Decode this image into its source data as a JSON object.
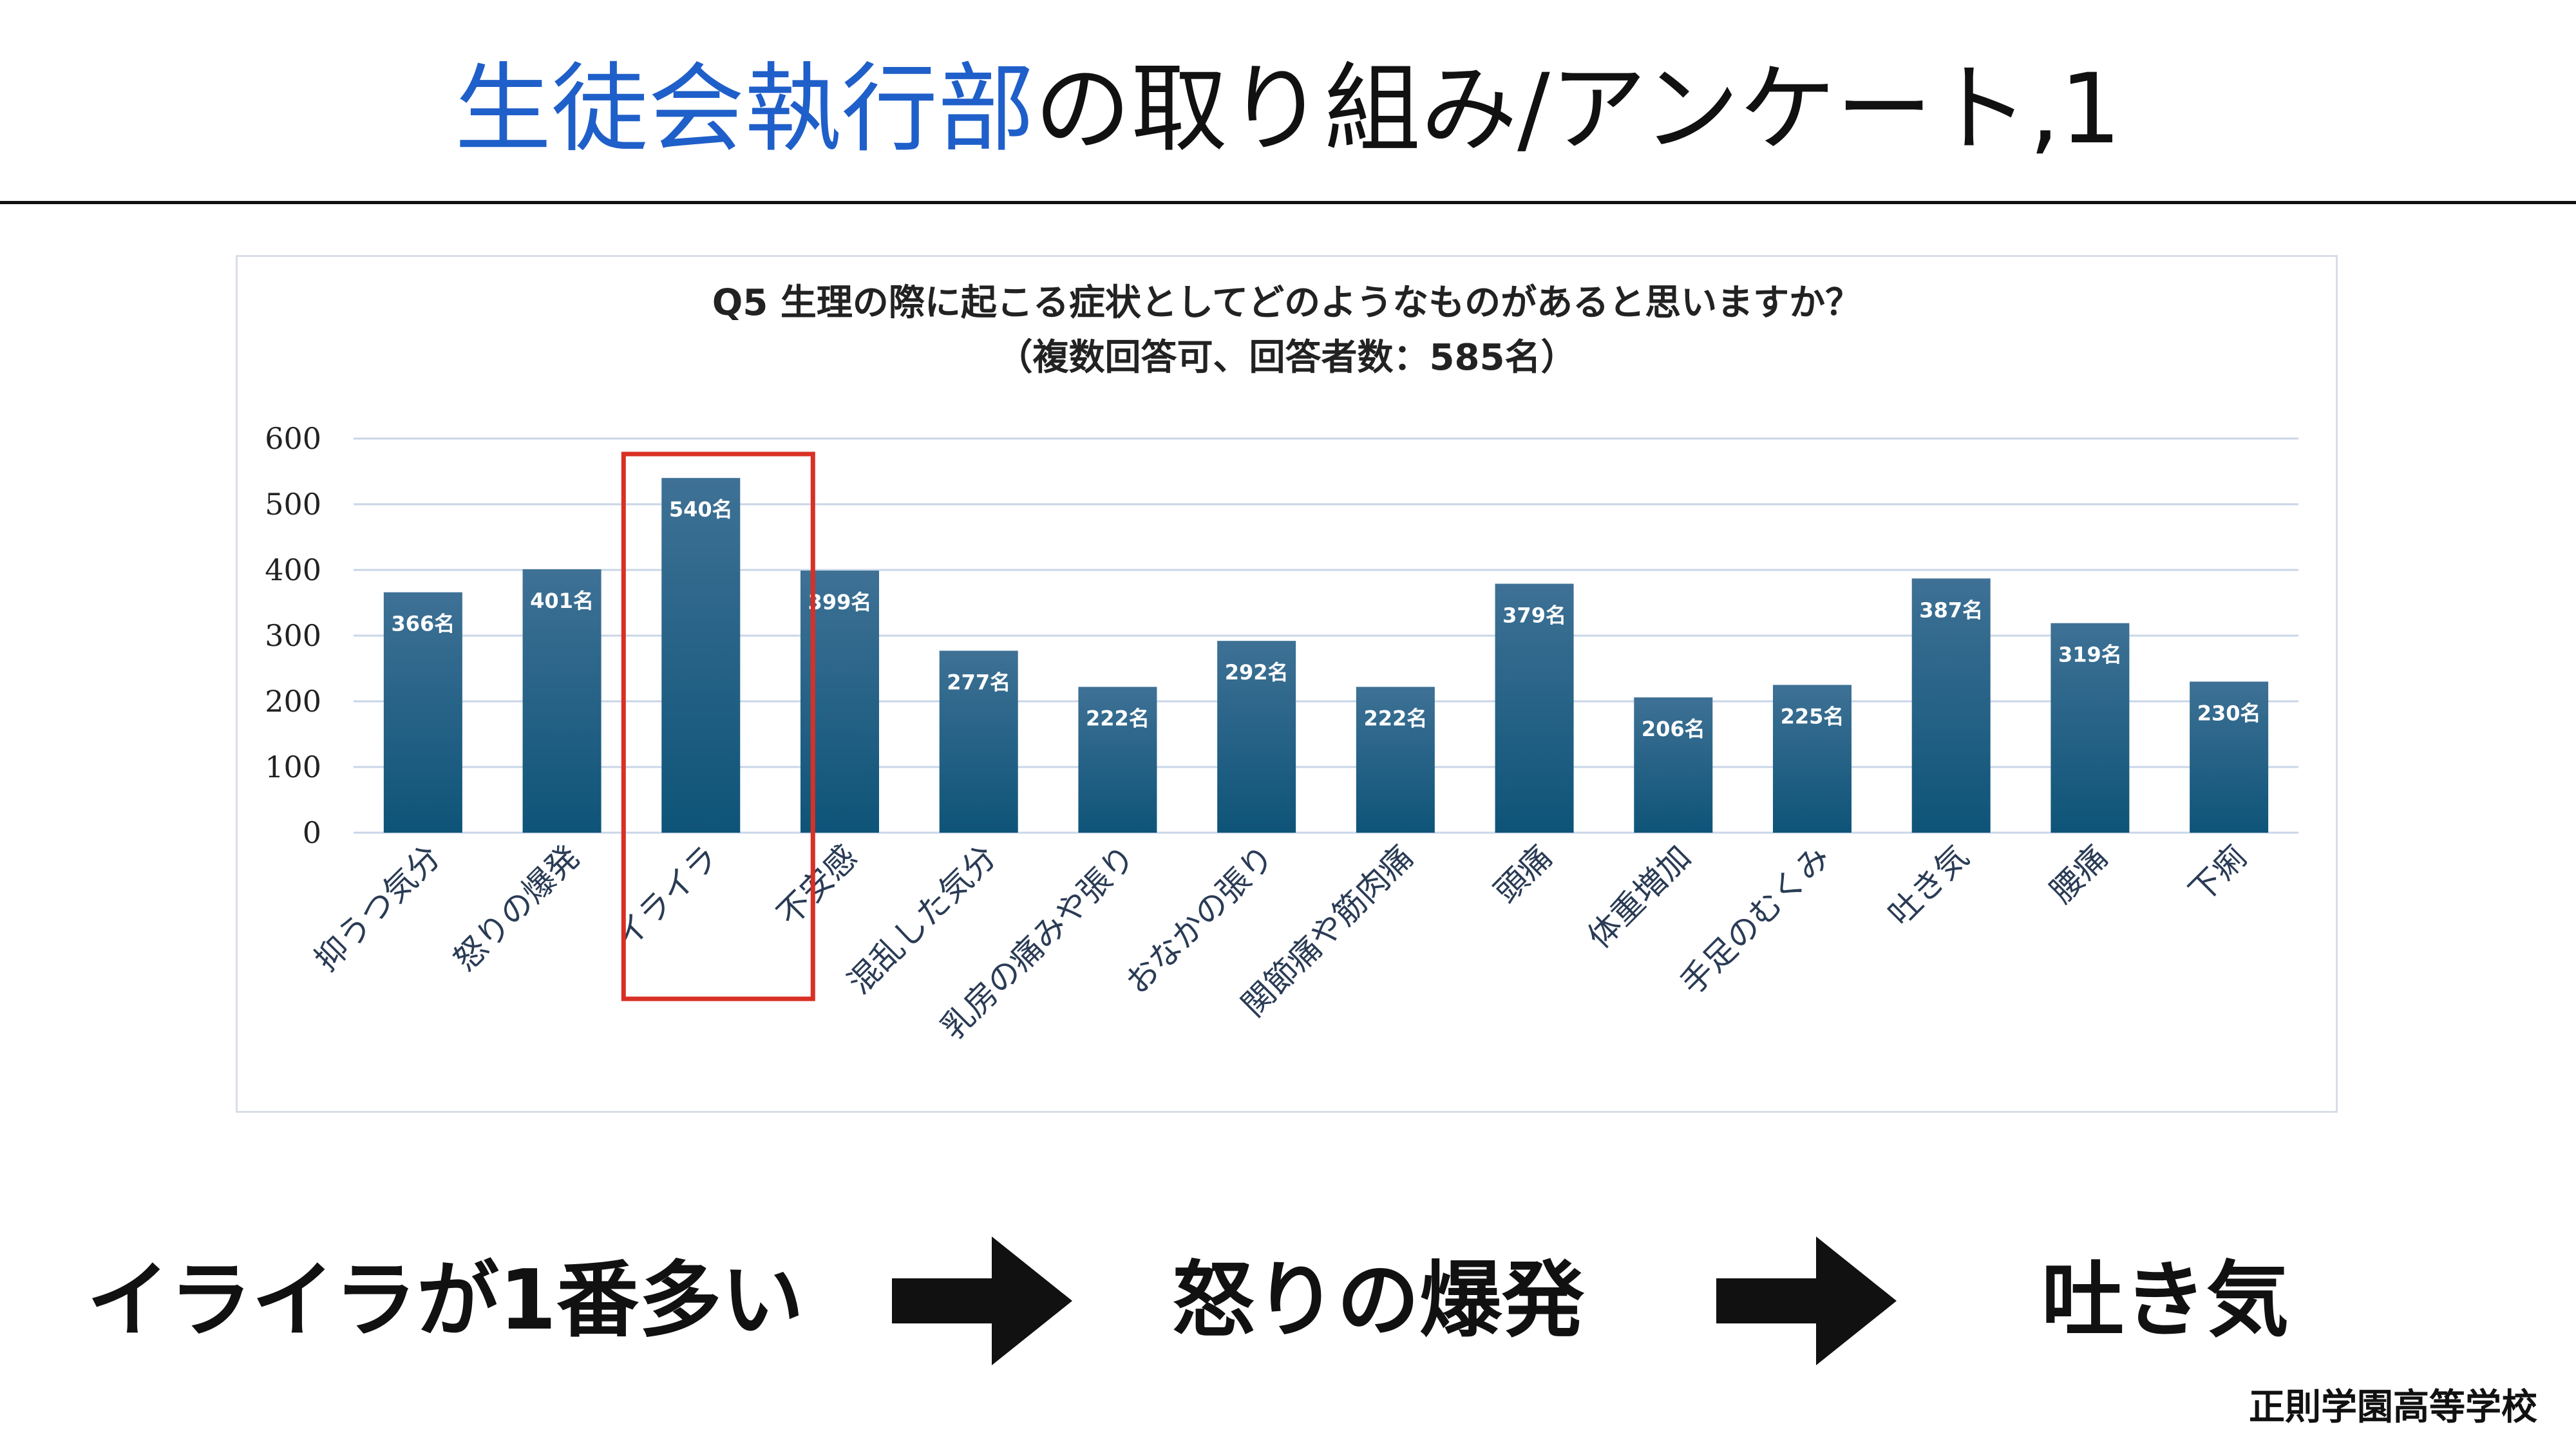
{
  "slide": {
    "title_accent": "生徒会執行部",
    "title_rest": "の取り組み/アンケート,1"
  },
  "chart_data": {
    "type": "bar",
    "title_line1": "Q5 生理の際に起こる症状としてどのようなものがあると思いますか？",
    "title_line2": "（複数回答可、回答者数：585名）",
    "categories": [
      "抑うつ気分",
      "怒りの爆発",
      "イライラ",
      "不安感",
      "混乱した気分",
      "乳房の痛みや張り",
      "おなかの張り",
      "関節痛や筋肉痛",
      "頭痛",
      "体重増加",
      "手足のむくみ",
      "吐き気",
      "腰痛",
      "下痢"
    ],
    "values": [
      366,
      401,
      540,
      399,
      277,
      222,
      292,
      222,
      379,
      206,
      225,
      387,
      319,
      230
    ],
    "value_labels": [
      "366名",
      "401名",
      "540名",
      "399名",
      "277名",
      "222名",
      "292名",
      "222名",
      "379名",
      "206名",
      "225名",
      "387名",
      "319名",
      "230名"
    ],
    "yticks": [
      0,
      100,
      200,
      300,
      400,
      500,
      600
    ],
    "ylim": [
      0,
      600
    ],
    "grid": true,
    "highlight_category": "イライラ",
    "colors": {
      "bar_top": "#3e7195",
      "bar_bottom": "#0e5478",
      "highlight_box": "#d93025",
      "grid": "#c9d6e8"
    }
  },
  "bottom": {
    "step1": "イライラが1番多い",
    "step2": "怒りの爆発",
    "step3": "吐き気"
  },
  "footer": {
    "school": "正則学園高等学校"
  }
}
